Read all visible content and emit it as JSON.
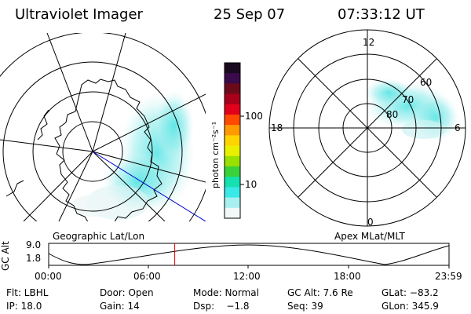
{
  "header": {
    "instrument": "Ultraviolet Imager",
    "date": "25 Sep 07",
    "time": "07:33:12 UT"
  },
  "geo_panel": {
    "label": "Geographic Lat/Lon"
  },
  "mag_panel": {
    "label": "Apex MLat/MLT",
    "mlt_labels": {
      "top": "12",
      "left": "18",
      "right": "6",
      "bottom": "0"
    },
    "lat_labels": [
      "80",
      "70",
      "60"
    ]
  },
  "colorbar": {
    "unit_label": "photon cm⁻²s⁻¹",
    "ticks": [
      "100",
      "10"
    ],
    "colors": [
      "#1b0a1f",
      "#3a0a4a",
      "#6b0a1a",
      "#a8001a",
      "#e2001a",
      "#ff4a00",
      "#ff9a00",
      "#ffd400",
      "#e8f000",
      "#9ae000",
      "#3ad23a",
      "#14e0b0",
      "#3ae8e8",
      "#a8f0f0",
      "#f2f8f8"
    ]
  },
  "altitude_plot": {
    "y_axis_label": "GC Alt",
    "y_ticks": [
      "9.0",
      "1.8"
    ],
    "x_ticks": [
      "00:00",
      "06:00",
      "12:00",
      "18:00",
      "23:59"
    ],
    "marker_time": "07:33:12",
    "marker_color": "#e00000"
  },
  "info": {
    "row1": {
      "filter": "Flt: LBHL",
      "door": "Door: Open",
      "mode": "Mode: Normal",
      "gc_alt": "GC Alt: 7.6 Re",
      "glat": "GLat: −83.2"
    },
    "row2": {
      "ip": "IP: 18.0",
      "gain": "Gain: 14",
      "dsp": "Dsp:    −1.8",
      "seq": "Seq: 39",
      "glon": "GLon: 345.9"
    }
  }
}
